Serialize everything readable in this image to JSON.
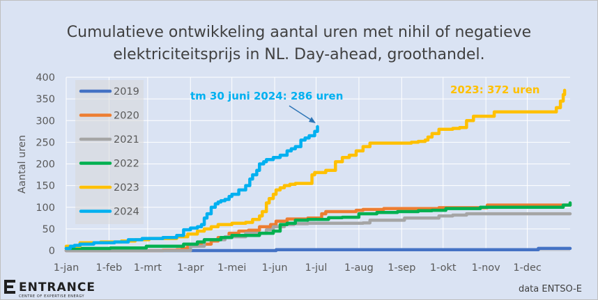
{
  "chart_data": {
    "type": "line",
    "title_line1": "Cumulatieve ontwikkeling aantal uren met nihil of negatieve",
    "title_line2": "elektriciteitsprijs in NL. Day-ahead, groothandel.",
    "ylabel": "Aantal uren",
    "xlabel": "",
    "ylim": [
      0,
      400
    ],
    "yticks": [
      0,
      50,
      100,
      150,
      200,
      250,
      300,
      350,
      400
    ],
    "xlim": [
      0,
      365
    ],
    "xticks": [
      {
        "label": "1-jan",
        "day": 0
      },
      {
        "label": "1-feb",
        "day": 31
      },
      {
        "label": "1-mrt",
        "day": 59
      },
      {
        "label": "1-apr",
        "day": 90
      },
      {
        "label": "1-mei",
        "day": 120
      },
      {
        "label": "1-jun",
        "day": 151
      },
      {
        "label": "1-jul",
        "day": 181
      },
      {
        "label": "1-aug",
        "day": 212
      },
      {
        "label": "1-sep",
        "day": 243
      },
      {
        "label": "1-okt",
        "day": 273
      },
      {
        "label": "1-nov",
        "day": 304
      },
      {
        "label": "1-dec",
        "day": 334
      }
    ],
    "grid": true,
    "legend_position": "top-left",
    "series": [
      {
        "name": "2019",
        "color": "#4472c4",
        "x": [
          0,
          150,
          152,
          340,
          342,
          365
        ],
        "y": [
          0,
          0,
          2,
          2,
          5,
          5
        ]
      },
      {
        "name": "2020",
        "color": "#ed7d31",
        "x": [
          0,
          58,
          70,
          80,
          84,
          88,
          94,
          105,
          110,
          118,
          125,
          132,
          140,
          148,
          152,
          160,
          175,
          185,
          188,
          210,
          215,
          230,
          270,
          305,
          365
        ],
        "y": [
          0,
          0,
          1,
          2,
          5,
          10,
          15,
          22,
          30,
          40,
          45,
          47,
          55,
          60,
          68,
          73,
          75,
          85,
          90,
          93,
          95,
          97,
          99,
          105,
          105
        ]
      },
      {
        "name": "2021",
        "color": "#a5a5a5",
        "x": [
          0,
          80,
          90,
          100,
          115,
          130,
          145,
          150,
          158,
          165,
          175,
          190,
          215,
          220,
          245,
          270,
          280,
          290,
          365
        ],
        "y": [
          0,
          0,
          10,
          25,
          32,
          40,
          48,
          55,
          60,
          62,
          63,
          63,
          64,
          70,
          75,
          80,
          82,
          85,
          85
        ]
      },
      {
        "name": "2022",
        "color": "#00b050",
        "x": [
          0,
          2,
          5,
          30,
          32,
          55,
          58,
          80,
          85,
          95,
          100,
          110,
          112,
          120,
          140,
          150,
          155,
          160,
          166,
          175,
          185,
          190,
          200,
          212,
          225,
          240,
          250,
          255,
          265,
          270,
          275,
          300,
          318,
          338,
          360,
          365
        ],
        "y": [
          5,
          5,
          5,
          5,
          6,
          6,
          10,
          10,
          15,
          20,
          25,
          25,
          30,
          35,
          40,
          45,
          60,
          63,
          70,
          72,
          72,
          76,
          77,
          85,
          88,
          90,
          90,
          92,
          93,
          93,
          97,
          100,
          100,
          100,
          105,
          110
        ]
      },
      {
        "name": "2023",
        "color": "#ffc000",
        "x": [
          0,
          10,
          25,
          40,
          50,
          60,
          80,
          88,
          95,
          100,
          105,
          110,
          120,
          130,
          135,
          140,
          142,
          145,
          147,
          150,
          152,
          155,
          158,
          162,
          166,
          175,
          178,
          180,
          188,
          195,
          200,
          205,
          210,
          215,
          220,
          240,
          250,
          255,
          260,
          262,
          265,
          270,
          280,
          285,
          290,
          295,
          310,
          320,
          330,
          340,
          355,
          358,
          360,
          361
        ],
        "y": [
          10,
          18,
          20,
          22,
          25,
          28,
          32,
          38,
          45,
          50,
          55,
          60,
          63,
          65,
          72,
          80,
          90,
          110,
          120,
          130,
          140,
          145,
          150,
          153,
          155,
          155,
          175,
          180,
          185,
          205,
          215,
          220,
          230,
          240,
          248,
          248,
          250,
          252,
          255,
          262,
          270,
          280,
          282,
          284,
          300,
          310,
          320,
          320,
          320,
          320,
          330,
          345,
          360,
          370
        ]
      },
      {
        "name": "2024",
        "color": "#00b0f0",
        "x": [
          0,
          3,
          6,
          10,
          20,
          35,
          45,
          55,
          70,
          80,
          85,
          90,
          95,
          98,
          100,
          102,
          105,
          108,
          110,
          112,
          115,
          118,
          120,
          125,
          130,
          133,
          135,
          138,
          140,
          143,
          145,
          150,
          155,
          160,
          163,
          166,
          170,
          173,
          176,
          180,
          182
        ],
        "y": [
          5,
          10,
          12,
          15,
          18,
          20,
          25,
          28,
          30,
          35,
          48,
          52,
          55,
          60,
          75,
          85,
          100,
          108,
          112,
          115,
          118,
          125,
          130,
          140,
          150,
          165,
          175,
          185,
          200,
          205,
          210,
          215,
          220,
          230,
          235,
          240,
          255,
          260,
          265,
          275,
          286
        ]
      }
    ],
    "annotations": [
      {
        "text": "tm 30 juni 2024: 286 uren",
        "color": "#00b0f0"
      },
      {
        "text": "2023: 372 uren",
        "color": "#ffc000"
      }
    ]
  },
  "footer": {
    "logo_name": "ENTRANCE",
    "logo_subtitle": "CENTRE OF EXPERTISE ENERGY",
    "source": "data ENTSO-E"
  }
}
